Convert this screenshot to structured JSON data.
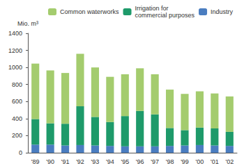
{
  "chart_data": {
    "type": "bar",
    "stacked": true,
    "y_label": "Mio. m³",
    "categories": [
      "'89",
      "'90",
      "'91",
      "'92",
      "'93",
      "'94",
      "'95",
      "'96",
      "'97",
      "'98",
      "'99",
      "'00",
      "'01",
      "'02"
    ],
    "series": [
      {
        "name": "Industry",
        "color": "#4a7dc0",
        "values": [
          95,
          95,
          85,
          90,
          85,
          80,
          75,
          75,
          75,
          80,
          85,
          90,
          85,
          80
        ]
      },
      {
        "name": "Irrigation for commercial purposes",
        "color": "#1e9a6a",
        "values": [
          300,
          250,
          255,
          455,
          335,
          280,
          355,
          415,
          375,
          210,
          180,
          205,
          200,
          165
        ]
      },
      {
        "name": "Common waterworks",
        "color": "#a4cc6e",
        "values": [
          650,
          620,
          595,
          615,
          580,
          530,
          490,
          500,
          470,
          450,
          425,
          425,
          410,
          415
        ]
      }
    ],
    "ylim": [
      0,
      1400
    ],
    "yticks": [
      0,
      200,
      400,
      600,
      800,
      1000,
      1200,
      1400
    ],
    "grid": false,
    "legend": "top"
  }
}
